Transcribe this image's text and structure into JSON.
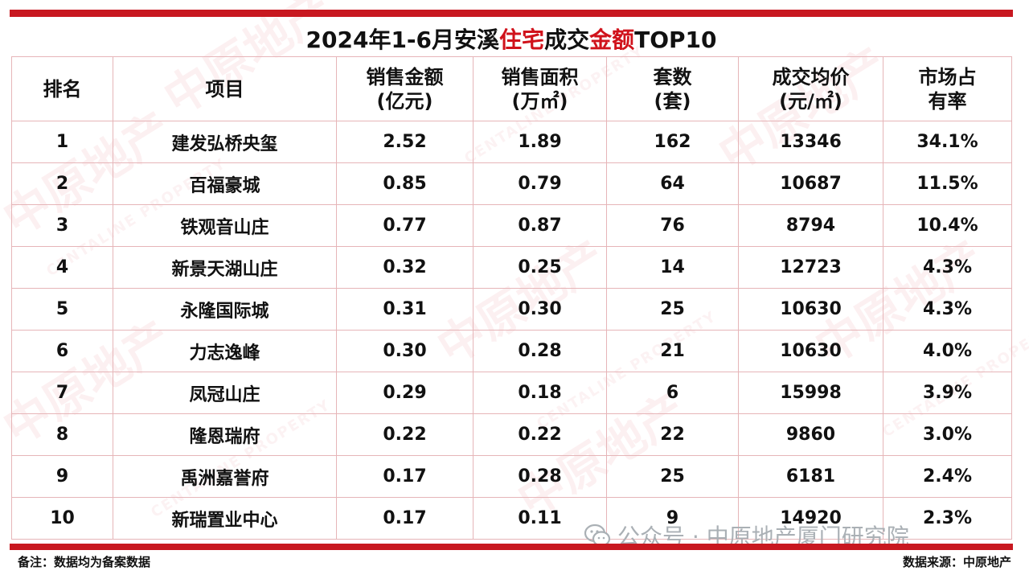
{
  "title": {
    "part1": "2024年1-6月安溪",
    "part2": "住宅",
    "part3": "成交",
    "part4": "金额",
    "part5": "TOP10"
  },
  "colors": {
    "accent_red": "#c81820",
    "highlight_red": "#d0121b",
    "grid_line": "#e6b5b8"
  },
  "columns": [
    {
      "line1": "排名",
      "line2": ""
    },
    {
      "line1": "项目",
      "line2": ""
    },
    {
      "line1": "销售金额",
      "line2": "(亿元)"
    },
    {
      "line1": "销售面积",
      "line2": "(万㎡)"
    },
    {
      "line1": "套数",
      "line2": "(套)"
    },
    {
      "line1": "成交均价",
      "line2": "(元/㎡)"
    },
    {
      "line1": "市场占",
      "line2": "有率"
    }
  ],
  "rows": [
    {
      "rank": "1",
      "project": "建发弘桥央玺",
      "amount": "2.52",
      "area": "1.89",
      "units": "162",
      "price": "13346",
      "share": "34.1%"
    },
    {
      "rank": "2",
      "project": "百福豪城",
      "amount": "0.85",
      "area": "0.79",
      "units": "64",
      "price": "10687",
      "share": "11.5%"
    },
    {
      "rank": "3",
      "project": "铁观音山庄",
      "amount": "0.77",
      "area": "0.87",
      "units": "76",
      "price": "8794",
      "share": "10.4%"
    },
    {
      "rank": "4",
      "project": "新景天湖山庄",
      "amount": "0.32",
      "area": "0.25",
      "units": "14",
      "price": "12723",
      "share": "4.3%"
    },
    {
      "rank": "5",
      "project": "永隆国际城",
      "amount": "0.31",
      "area": "0.30",
      "units": "25",
      "price": "10630",
      "share": "4.3%"
    },
    {
      "rank": "6",
      "project": "力志逸峰",
      "amount": "0.30",
      "area": "0.28",
      "units": "21",
      "price": "10630",
      "share": "4.0%"
    },
    {
      "rank": "7",
      "project": "凤冠山庄",
      "amount": "0.29",
      "area": "0.18",
      "units": "6",
      "price": "15998",
      "share": "3.9%"
    },
    {
      "rank": "8",
      "project": "隆恩瑞府",
      "amount": "0.22",
      "area": "0.22",
      "units": "22",
      "price": "9860",
      "share": "3.0%"
    },
    {
      "rank": "9",
      "project": "禹洲嘉誉府",
      "amount": "0.17",
      "area": "0.28",
      "units": "25",
      "price": "6181",
      "share": "2.4%"
    },
    {
      "rank": "10",
      "project": "新瑞置业中心",
      "amount": "0.17",
      "area": "0.11",
      "units": "9",
      "price": "14920",
      "share": "2.3%"
    }
  ],
  "footer": {
    "note": "备注：数据均为备案数据",
    "source": "数据来源：中原地产",
    "wechat_label": "公众号 · 中原地产厦门研究院"
  },
  "watermark": {
    "logo_text": "中原地产",
    "english_text": "CENTALINE PROPERTY"
  },
  "icons": {
    "wechat": "wechat-icon"
  }
}
